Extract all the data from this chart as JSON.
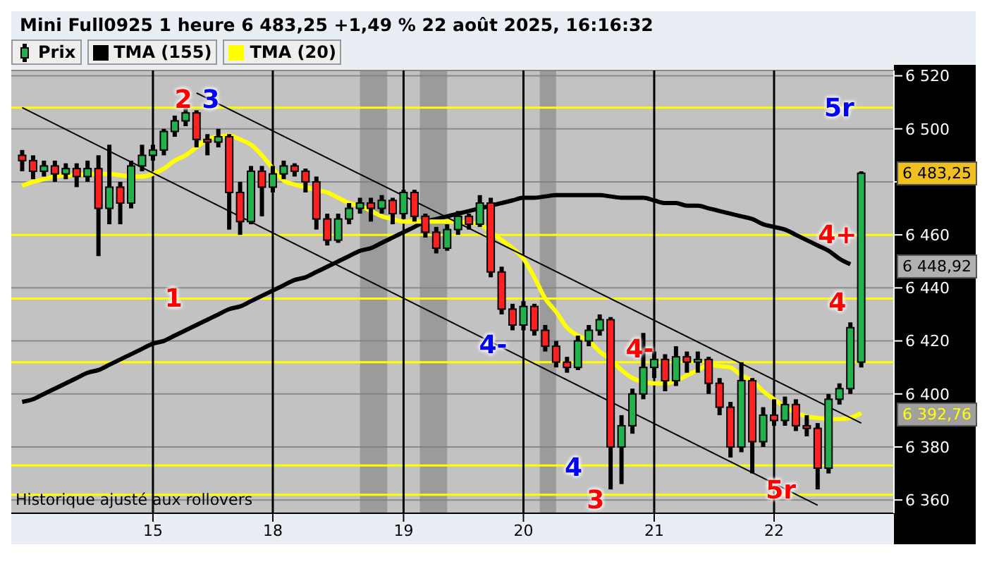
{
  "chart_data": {
    "type": "candlestick",
    "title": "Mini Full0925 1 heure 6 483,25 +1,49 % 22 août 2025, 16:16:32",
    "categories": [
      null,
      null,
      null,
      null,
      null,
      null,
      null,
      null,
      null,
      null,
      null,
      null,
      "15",
      null,
      null,
      null,
      null,
      null,
      null,
      null,
      null,
      null,
      null,
      "18",
      null,
      null,
      null,
      null,
      null,
      null,
      null,
      null,
      null,
      null,
      null,
      "19",
      null,
      null,
      null,
      null,
      null,
      null,
      null,
      null,
      null,
      null,
      "20",
      null,
      null,
      null,
      null,
      null,
      null,
      null,
      null,
      null,
      null,
      null,
      "21",
      null,
      null,
      null,
      null,
      null,
      null,
      null,
      null,
      null,
      null,
      "22",
      null,
      null,
      null,
      null,
      null,
      null,
      null,
      null
    ],
    "series": [
      {
        "name": "Prix",
        "ohlc": [
          [
            6490,
            6492,
            6484,
            6488
          ],
          [
            6488,
            6490,
            6481,
            6484
          ],
          [
            6484,
            6488,
            6482,
            6486
          ],
          [
            6486,
            6488,
            6480,
            6483
          ],
          [
            6483,
            6487,
            6481,
            6485
          ],
          [
            6485,
            6487,
            6478,
            6482
          ],
          [
            6482,
            6488,
            6480,
            6485
          ],
          [
            6485,
            6490,
            6452,
            6470
          ],
          [
            6470,
            6494,
            6464,
            6478
          ],
          [
            6478,
            6480,
            6464,
            6472
          ],
          [
            6472,
            6488,
            6470,
            6486
          ],
          [
            6486,
            6494,
            6484,
            6490
          ],
          [
            6490,
            6494,
            6488,
            6492
          ],
          [
            6492,
            6500,
            6490,
            6499
          ],
          [
            6499,
            6505,
            6497,
            6503
          ],
          [
            6503,
            6509,
            6501,
            6506
          ],
          [
            6506,
            6507,
            6493,
            6496
          ],
          [
            6496,
            6498,
            6490,
            6495
          ],
          [
            6495,
            6500,
            6493,
            6497
          ],
          [
            6497,
            6498,
            6462,
            6476
          ],
          [
            6476,
            6480,
            6460,
            6465
          ],
          [
            6465,
            6486,
            6464,
            6484
          ],
          [
            6484,
            6486,
            6467,
            6478
          ],
          [
            6478,
            6486,
            6476,
            6483
          ],
          [
            6483,
            6488,
            6481,
            6486
          ],
          [
            6486,
            6487,
            6482,
            6484
          ],
          [
            6484,
            6485,
            6476,
            6480
          ],
          [
            6480,
            6482,
            6462,
            6466
          ],
          [
            6466,
            6468,
            6456,
            6458
          ],
          [
            6458,
            6468,
            6457,
            6466
          ],
          [
            6466,
            6472,
            6464,
            6470
          ],
          [
            6470,
            6474,
            6468,
            6472
          ],
          [
            6472,
            6474,
            6465,
            6470
          ],
          [
            6470,
            6475,
            6468,
            6473
          ],
          [
            6473,
            6474,
            6464,
            6468
          ],
          [
            6468,
            6477,
            6466,
            6476
          ],
          [
            6476,
            6477,
            6465,
            6467
          ],
          [
            6467,
            6468,
            6459,
            6461
          ],
          [
            6461,
            6463,
            6453,
            6455
          ],
          [
            6455,
            6464,
            6454,
            6462
          ],
          [
            6462,
            6469,
            6460,
            6467
          ],
          [
            6467,
            6468,
            6462,
            6464
          ],
          [
            6464,
            6475,
            6463,
            6472
          ],
          [
            6472,
            6474,
            6444,
            6446
          ],
          [
            6446,
            6448,
            6430,
            6432
          ],
          [
            6432,
            6434,
            6424,
            6426
          ],
          [
            6426,
            6435,
            6424,
            6433
          ],
          [
            6433,
            6434,
            6422,
            6424
          ],
          [
            6424,
            6426,
            6416,
            6418
          ],
          [
            6418,
            6420,
            6410,
            6412
          ],
          [
            6412,
            6414,
            6408,
            6410
          ],
          [
            6410,
            6422,
            6409,
            6420
          ],
          [
            6420,
            6426,
            6418,
            6424
          ],
          [
            6424,
            6430,
            6422,
            6428
          ],
          [
            6428,
            6429,
            6364,
            6380
          ],
          [
            6380,
            6392,
            6366,
            6388
          ],
          [
            6388,
            6402,
            6385,
            6400
          ],
          [
            6400,
            6423,
            6398,
            6410
          ],
          [
            6410,
            6416,
            6406,
            6413
          ],
          [
            6413,
            6415,
            6401,
            6405
          ],
          [
            6405,
            6418,
            6403,
            6414
          ],
          [
            6414,
            6416,
            6408,
            6412
          ],
          [
            6412,
            6416,
            6408,
            6413
          ],
          [
            6413,
            6414,
            6400,
            6404
          ],
          [
            6404,
            6406,
            6392,
            6395
          ],
          [
            6395,
            6397,
            6376,
            6380
          ],
          [
            6380,
            6412,
            6378,
            6405
          ],
          [
            6405,
            6406,
            6370,
            6382
          ],
          [
            6382,
            6395,
            6380,
            6392
          ],
          [
            6392,
            6398,
            6388,
            6390
          ],
          [
            6390,
            6399,
            6388,
            6396
          ],
          [
            6396,
            6398,
            6386,
            6388
          ],
          [
            6388,
            6392,
            6384,
            6387
          ],
          [
            6387,
            6389,
            6364,
            6372
          ],
          [
            6372,
            6400,
            6370,
            6398
          ],
          [
            6398,
            6404,
            6396,
            6402
          ],
          [
            6402,
            6427,
            6400,
            6425
          ],
          [
            6412,
            6484,
            6410,
            6483.25
          ]
        ]
      },
      {
        "name": "TMA (155)",
        "type": "line",
        "color": "#000000",
        "values": [
          6397,
          6398,
          6400,
          6402,
          6404,
          6406,
          6408,
          6409,
          6411,
          6413,
          6415,
          6417,
          6419,
          6420,
          6422,
          6424,
          6426,
          6428,
          6430,
          6432,
          6433,
          6435,
          6437,
          6439,
          6441,
          6443,
          6444,
          6446,
          6448,
          6450,
          6452,
          6454,
          6455,
          6457,
          6459,
          6461,
          6463,
          6465,
          6466,
          6467,
          6468,
          6469,
          6470,
          6471,
          6472,
          6473,
          6474,
          6474,
          6474.5,
          6475,
          6475,
          6475,
          6475,
          6475,
          6474.5,
          6474,
          6474,
          6474,
          6473,
          6472,
          6472,
          6471,
          6471,
          6470,
          6469,
          6468,
          6467,
          6466,
          6464,
          6463,
          6462,
          6460,
          6458,
          6456,
          6454,
          6451,
          6448.92,
          null
        ]
      },
      {
        "name": "TMA (20)",
        "type": "line",
        "color": "#ffff00",
        "values": [
          6478.5,
          6480,
          6481,
          6482,
          6482.5,
          6482.5,
          6483,
          6483,
          6483,
          6482.5,
          6482,
          6482,
          6483,
          6485,
          6488,
          6490,
          6493,
          6496,
          6497,
          6497.5,
          6496,
          6494,
          6490,
          6485,
          6480.5,
          6479,
          6478,
          6477,
          6476,
          6474,
          6472,
          6471,
          6469,
          6467,
          6466,
          6465,
          6465,
          6465,
          6465,
          6465,
          6465,
          6464.5,
          6464,
          6461,
          6458,
          6455,
          6451,
          6444,
          6436,
          6431,
          6425,
          6422,
          6420,
          6416,
          6413,
          6409,
          6406,
          6404.5,
          6404,
          6404,
          6405,
          6407,
          6409,
          6411,
          6410.5,
          6410,
          6407,
          6405,
          6401,
          6398,
          6395,
          6393,
          6391.5,
          6391,
          6390.5,
          6390.5,
          6391,
          6392.76
        ]
      },
      {
        "type": "line",
        "color": "#000000",
        "values": [
          6508,
          null,
          null,
          null,
          null,
          null,
          null,
          null,
          null,
          null,
          null,
          null,
          null,
          null,
          null,
          null,
          null,
          null,
          null,
          null,
          null,
          null,
          null,
          null,
          null,
          null,
          null,
          null,
          null,
          null,
          null,
          null,
          null,
          null,
          null,
          null,
          null,
          null,
          null,
          null,
          null,
          null,
          null,
          null,
          null,
          null,
          null,
          null,
          null,
          null,
          null,
          null,
          null,
          null,
          null,
          null,
          null,
          null,
          null,
          null,
          null,
          null,
          null,
          null,
          null,
          null,
          null,
          null,
          null,
          null,
          null,
          null,
          null,
          6358,
          null,
          null,
          null,
          null
        ]
      },
      {
        "type": "line",
        "color": "#000000",
        "values": [
          null,
          null,
          null,
          null,
          null,
          null,
          null,
          null,
          null,
          null,
          null,
          null,
          null,
          null,
          null,
          null,
          6513.5,
          null,
          null,
          null,
          null,
          null,
          null,
          null,
          null,
          null,
          null,
          null,
          null,
          null,
          null,
          null,
          null,
          null,
          null,
          null,
          null,
          null,
          null,
          null,
          null,
          null,
          null,
          null,
          null,
          null,
          null,
          null,
          null,
          null,
          null,
          null,
          null,
          null,
          null,
          null,
          null,
          null,
          null,
          null,
          null,
          null,
          null,
          null,
          null,
          null,
          null,
          null,
          null,
          null,
          null,
          null,
          null,
          null,
          null,
          null,
          null,
          6389
        ]
      }
    ],
    "ylim": [
      6355,
      6522
    ],
    "yticks": [
      {
        "value": 6360,
        "label": "6 360"
      },
      {
        "value": 6380,
        "label": "6 380"
      },
      {
        "value": 6400,
        "label": "6 400"
      },
      {
        "value": 6420,
        "label": "6 420"
      },
      {
        "value": 6440,
        "label": "6 440"
      },
      {
        "value": 6460,
        "label": "6 460"
      },
      {
        "value": 6480,
        "label": null
      },
      {
        "value": 6500,
        "label": "6 500"
      },
      {
        "value": 6520,
        "label": "6 520"
      }
    ],
    "ref_lines": [
      {
        "axis": "y",
        "value": 6508,
        "color": "#ffff00"
      },
      {
        "axis": "y",
        "value": 6460,
        "color": "#ffff00"
      },
      {
        "axis": "y",
        "value": 6436,
        "color": "#ffff00"
      },
      {
        "axis": "y",
        "value": 6412,
        "color": "#ffff00"
      },
      {
        "axis": "y",
        "value": 6373,
        "color": "#ffff00"
      },
      {
        "axis": "y",
        "value": 6362,
        "color": "#ffff00"
      },
      {
        "axis": "x",
        "value": "15",
        "color": "#000000"
      },
      {
        "axis": "x",
        "value": "18",
        "color": "#000000"
      },
      {
        "axis": "x",
        "value": "19",
        "color": "#000000"
      },
      {
        "axis": "x",
        "value": "20",
        "color": "#000000"
      },
      {
        "axis": "x",
        "value": "21",
        "color": "#000000"
      },
      {
        "axis": "x",
        "value": "22",
        "color": "#000000"
      }
    ],
    "annotations": [
      "1",
      "2",
      "3",
      "4-",
      "4-",
      "4",
      "3",
      "5r",
      "4+",
      "4",
      "5r",
      "6 483,25",
      "6 448,92",
      "6 392,76",
      "Historique ajusté aux rollovers"
    ],
    "grid": "y",
    "legend": "top left"
  }
}
